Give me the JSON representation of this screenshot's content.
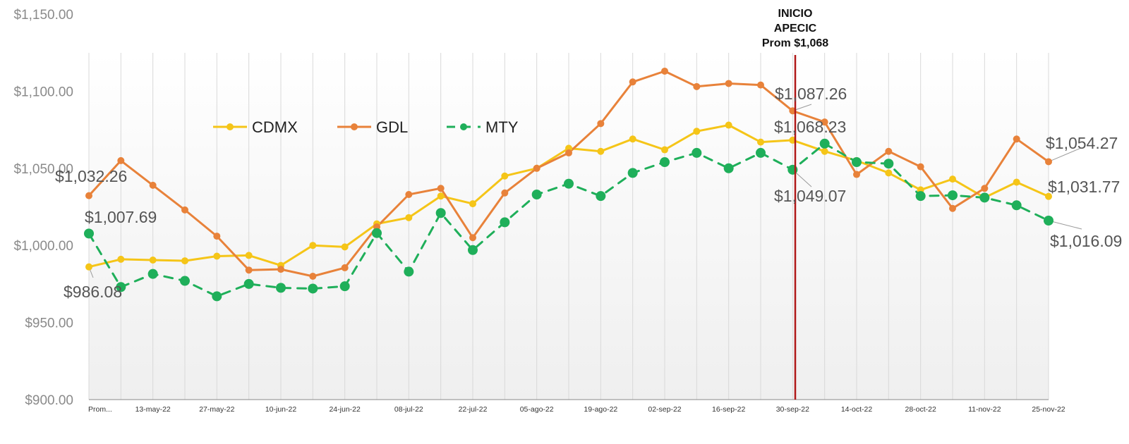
{
  "chart_data": {
    "type": "line",
    "ylim": [
      900,
      1150
    ],
    "yticks": [
      "$900.00",
      "$950.00",
      "$1,000.00",
      "$1,050.00",
      "$1,100.00",
      "$1,150.00"
    ],
    "xtick_labels": [
      "Prom...",
      "13-may-22",
      "27-may-22",
      "10-jun-22",
      "24-jun-22",
      "08-jul-22",
      "22-jul-22",
      "05-ago-22",
      "19-ago-22",
      "02-sep-22",
      "16-sep-22",
      "30-sep-22",
      "14-oct-22",
      "28-oct-22",
      "11-nov-22",
      "25-nov-22"
    ],
    "x_labeled_every": 2,
    "point_count": 31,
    "grid": "vertical",
    "legend": "top-left",
    "series": [
      {
        "name": "CDMX",
        "color": "#F5C518",
        "style": "solid",
        "values": [
          986.08,
          991,
          990.5,
          990,
          993,
          993.5,
          987,
          1000,
          999,
          1014,
          1018,
          1032,
          1027,
          1045,
          1050,
          1063,
          1061,
          1069,
          1062,
          1074,
          1078,
          1067,
          1068.23,
          1061,
          1055,
          1047,
          1036,
          1043,
          1031,
          1041,
          1031.77
        ]
      },
      {
        "name": "GDL",
        "color": "#E8823A",
        "style": "solid",
        "values": [
          1032.26,
          1055,
          1039,
          1023,
          1006,
          984,
          984.5,
          980,
          985.5,
          1012,
          1033,
          1037,
          1005,
          1034,
          1050,
          1060,
          1079,
          1106,
          1113,
          1103,
          1105,
          1104,
          1087.26,
          1080,
          1046,
          1061,
          1051,
          1024,
          1037,
          1069,
          1054.27
        ]
      },
      {
        "name": "MTY",
        "color": "#1FAF5A",
        "style": "dashed",
        "values": [
          1007.69,
          973,
          981.5,
          977,
          967,
          975,
          972.5,
          972,
          973.5,
          1008,
          983,
          1021,
          997,
          1015,
          1033,
          1040,
          1032,
          1047,
          1054,
          1060,
          1050,
          1060,
          1049.07,
          1066,
          1054,
          1053,
          1032,
          1032.5,
          1031,
          1026,
          1016.09
        ]
      }
    ],
    "callouts": [
      {
        "text": "$1,032.26",
        "series": "GDL",
        "index": 0
      },
      {
        "text": "$1,007.69",
        "series": "MTY",
        "index": 0
      },
      {
        "text": "$986.08",
        "series": "CDMX",
        "index": 0
      },
      {
        "text": "$1,087.26",
        "series": "GDL",
        "index": 22
      },
      {
        "text": "$1,068.23",
        "series": "CDMX",
        "index": 22
      },
      {
        "text": "$1,049.07",
        "series": "MTY",
        "index": 22
      },
      {
        "text": "$1,054.27",
        "series": "GDL",
        "index": 30
      },
      {
        "text": "$1,031.77",
        "series": "CDMX",
        "index": 30
      },
      {
        "text": "$1,016.09",
        "series": "MTY",
        "index": 30
      }
    ],
    "marker_line": {
      "lines": [
        "INICIO",
        "APECIC",
        "Prom $1,068"
      ],
      "color": "#B01818"
    }
  }
}
